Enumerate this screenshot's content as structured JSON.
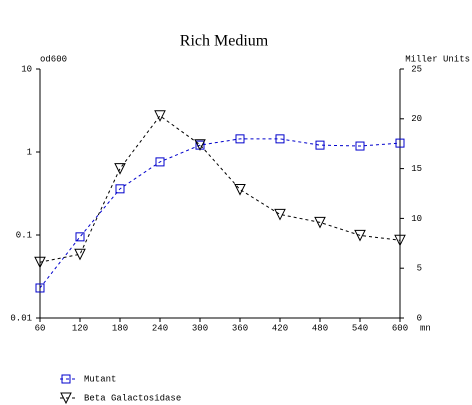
{
  "chart_data": {
    "type": "line",
    "title": "Rich Medium",
    "y_label": "od600",
    "y2_label": "Miller Units",
    "x_label": "mn",
    "x": [
      60,
      120,
      180,
      240,
      300,
      360,
      420,
      480,
      540,
      600
    ],
    "xlim": [
      60,
      600
    ],
    "xticks": [
      60,
      120,
      180,
      240,
      300,
      360,
      420,
      480,
      540,
      600
    ],
    "ylim": [
      0.01,
      10
    ],
    "yticks": [
      0.01,
      0.1,
      1,
      10
    ],
    "ylog": true,
    "y2lim": [
      0,
      25
    ],
    "y2ticks": [
      0,
      5,
      10,
      15,
      20,
      25
    ],
    "series": [
      {
        "name": "Mutant",
        "color": "#0000cc",
        "marker": "square",
        "values": [
          0.023,
          0.095,
          0.36,
          0.76,
          1.21,
          1.44,
          1.44,
          1.21,
          1.18,
          1.28
        ]
      },
      {
        "name": "Beta Galactosidase",
        "color": "#000000",
        "marker": "triangle",
        "axis": "y2",
        "values": [
          5.6,
          6.4,
          15.0,
          20.3,
          17.4,
          12.9,
          10.4,
          9.6,
          8.3,
          7.8
        ]
      }
    ]
  }
}
